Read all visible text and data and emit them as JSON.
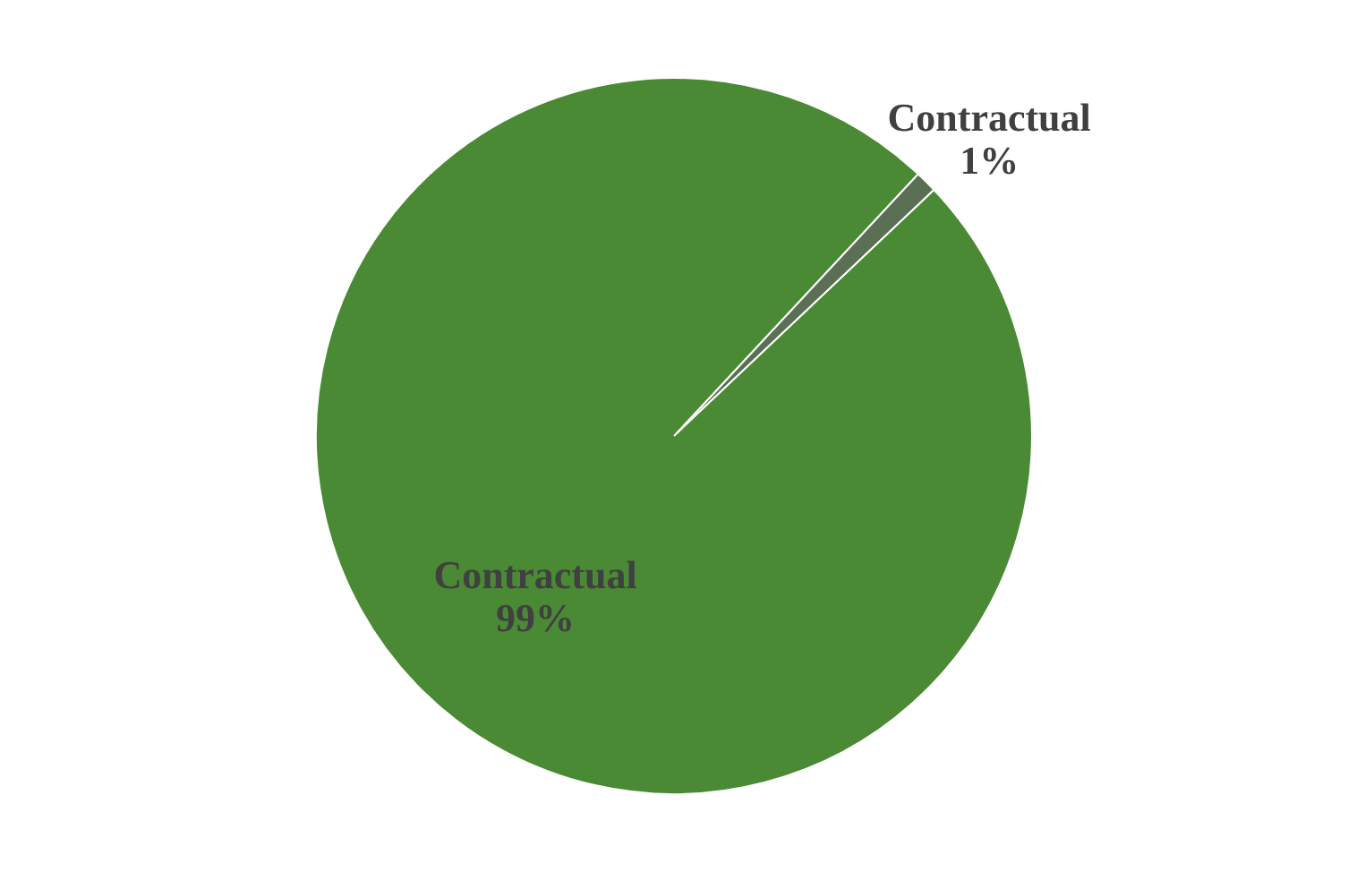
{
  "chart_data": {
    "type": "pie",
    "categories": [
      "Contractual",
      "Contractual"
    ],
    "values": [
      1,
      99
    ],
    "value_labels": [
      "1%",
      "99%"
    ],
    "colors": [
      "#5b6f55",
      "#4a8a34"
    ]
  }
}
